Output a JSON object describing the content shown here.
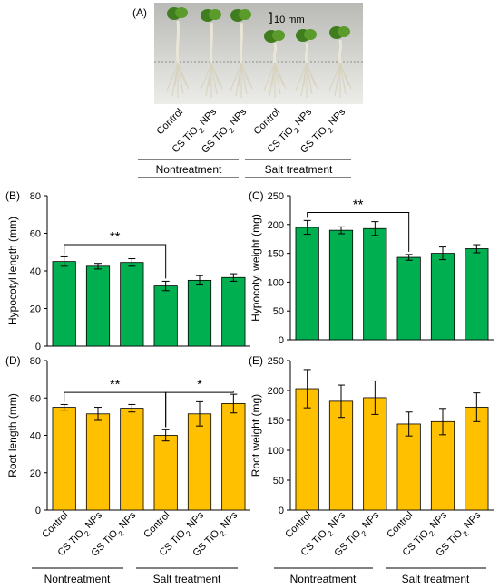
{
  "panel_a": {
    "label": "(A)",
    "scale_bar": "10 mm",
    "categories": [
      "Control",
      "CS TiO",
      "GS TiO"
    ],
    "subscript": "2",
    "suffix": " NPs",
    "groups": [
      "Nontreatment",
      "Salt treatment"
    ]
  },
  "colors": {
    "green": "#00b050",
    "orange": "#ffc000",
    "edge": "#000000"
  },
  "x_categories": [
    "Control",
    "CS TiO2 NPs",
    "GS TiO2 NPs",
    "Control",
    "CS TiO2 NPs",
    "GS TiO2 NPs"
  ],
  "group_labels": [
    "Nontreatment",
    "Salt treatment"
  ],
  "chart_data": [
    {
      "type": "bar",
      "panel": "(B)",
      "ylabel": "Hypocotyl length (mm)",
      "ylim": [
        0,
        80
      ],
      "yticks": [
        0,
        20,
        40,
        60,
        80
      ],
      "color": "green",
      "values": [
        45,
        42.5,
        44.5,
        32,
        35,
        36.5
      ],
      "errors": [
        2.5,
        1.5,
        2,
        2.5,
        2.5,
        2
      ],
      "significance": [
        {
          "from": 0,
          "to": 3,
          "label": "**",
          "y": 54
        }
      ]
    },
    {
      "type": "bar",
      "panel": "(C)",
      "ylabel": "Hypocotyl weight (mg)",
      "ylim": [
        0,
        250
      ],
      "yticks": [
        0,
        50,
        100,
        150,
        200,
        250
      ],
      "color": "green",
      "values": [
        195,
        190,
        193,
        143,
        150,
        158
      ],
      "errors": [
        12,
        6,
        12,
        5,
        11,
        7
      ],
      "significance": [
        {
          "from": 0,
          "to": 3,
          "label": "**",
          "y": 221
        }
      ]
    },
    {
      "type": "bar",
      "panel": "(D)",
      "ylabel": "Root length (mm)",
      "ylim": [
        0,
        80
      ],
      "yticks": [
        0,
        20,
        40,
        60,
        80
      ],
      "color": "orange",
      "values": [
        55,
        51.5,
        54.5,
        40,
        51.5,
        57
      ],
      "errors": [
        1.5,
        3.5,
        2,
        3,
        6.5,
        5
      ],
      "significance": [
        {
          "from": 0,
          "to": 3,
          "label": "**",
          "y": 63
        },
        {
          "from": 3,
          "to": 5,
          "label": "*",
          "y": 63
        }
      ]
    },
    {
      "type": "bar",
      "panel": "(E)",
      "ylabel": "Root weight (mg)",
      "ylim": [
        0,
        250
      ],
      "yticks": [
        0,
        50,
        100,
        150,
        200,
        250
      ],
      "color": "orange",
      "values": [
        203,
        182,
        188,
        144,
        148,
        172
      ],
      "errors": [
        32,
        27,
        28,
        20,
        22,
        24
      ],
      "significance": []
    }
  ]
}
